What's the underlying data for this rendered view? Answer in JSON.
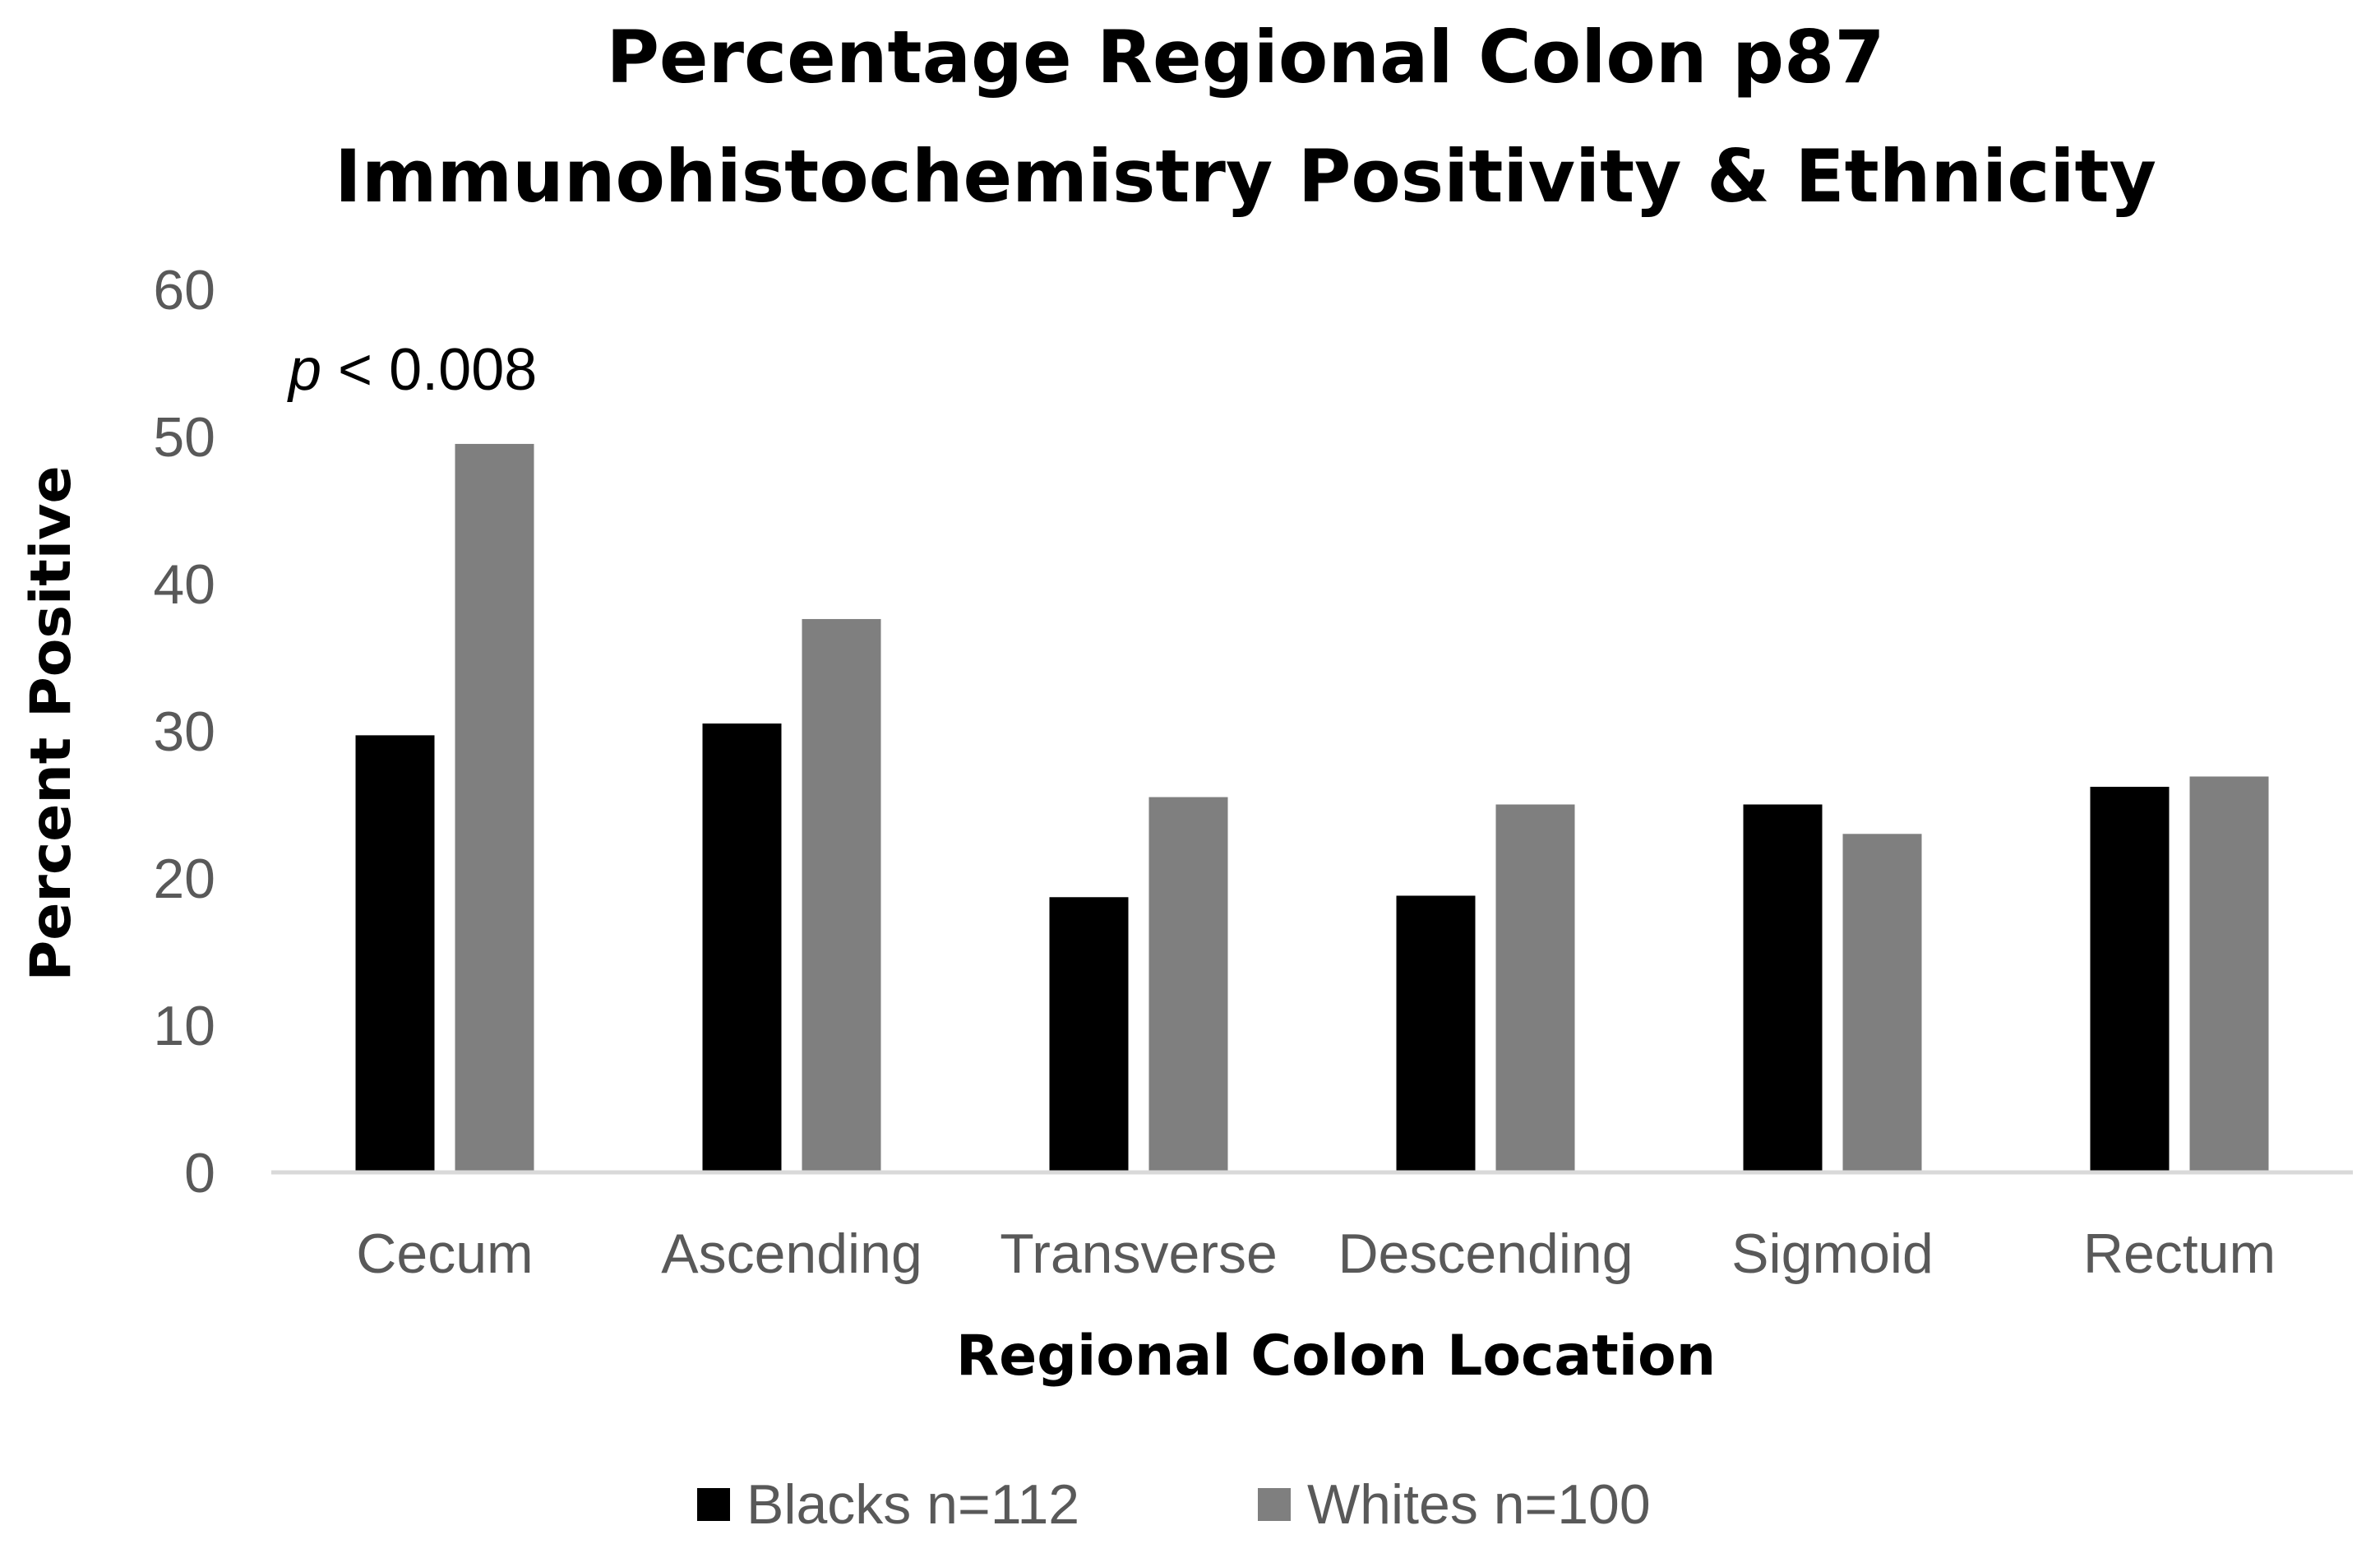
{
  "chart_data": {
    "type": "bar",
    "title_lines": [
      "Percentage Regional Colon p87",
      "Immunohistochemistry Positivity & Ethnicity"
    ],
    "xlabel": "Regional Colon Location",
    "ylabel": "Percent  Positive",
    "ylim": [
      0,
      60
    ],
    "yticks": [
      "0",
      "10",
      "20",
      "30",
      "40",
      "50",
      "60"
    ],
    "categories": [
      "Cecum",
      "Ascending",
      "Transverse",
      "Descending",
      "Sigmoid",
      "Rectum"
    ],
    "series": [
      {
        "name": "Blacks n=112",
        "color": "#000000",
        "values": [
          29.7,
          30.5,
          18.7,
          18.8,
          25.0,
          26.2
        ]
      },
      {
        "name": "Whites n=100",
        "color": "#7f7f7f",
        "values": [
          49.5,
          37.6,
          25.5,
          25.0,
          23.0,
          26.9
        ]
      }
    ],
    "annotation": {
      "italic_part": "p",
      "rest": " < 0.008",
      "category": "Cecum"
    },
    "legend_position": "bottom",
    "grid": false,
    "axis_color": "#d9d9d9"
  }
}
